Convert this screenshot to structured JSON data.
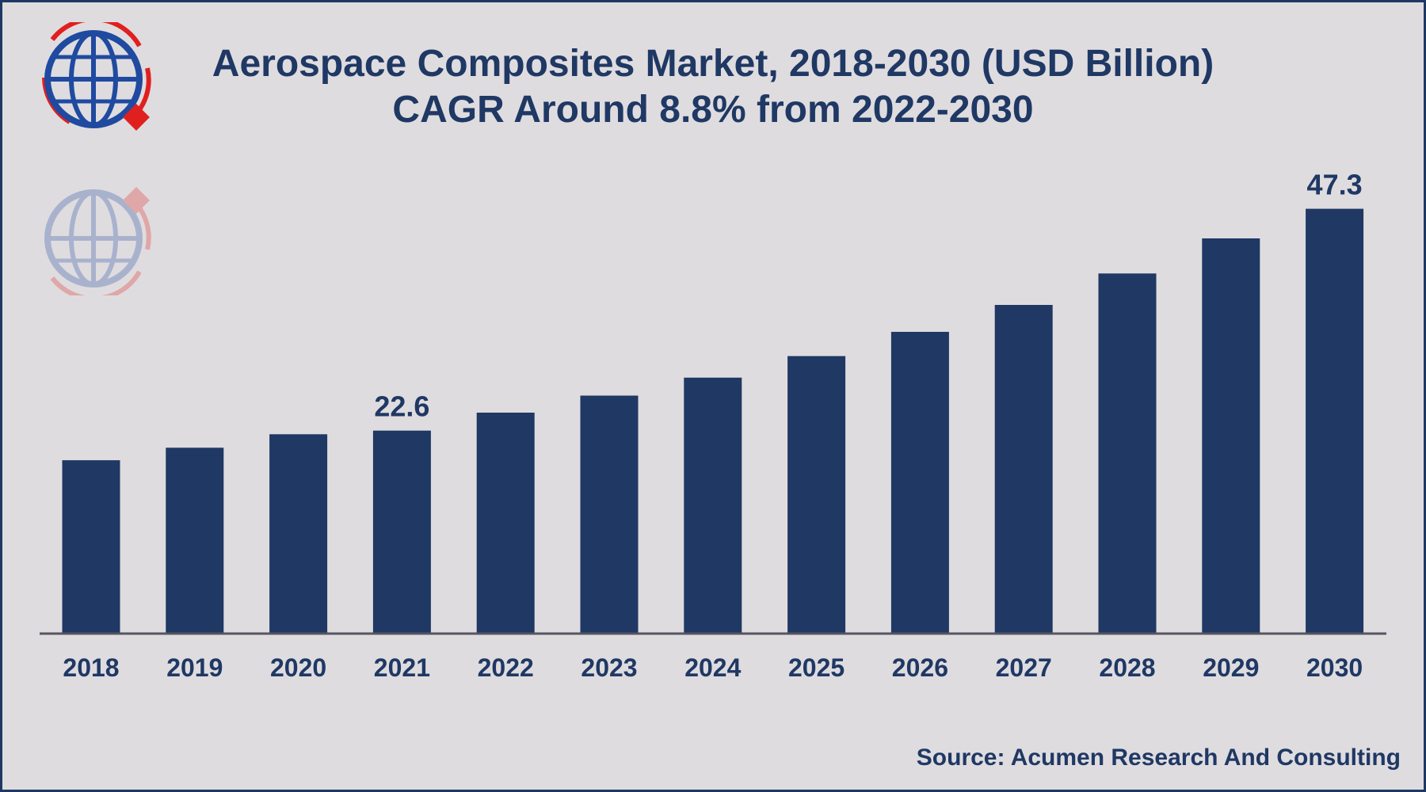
{
  "header": {
    "title_line1": "Aerospace Composites Market, 2018-2030 (USD Billion)",
    "title_line2": "CAGR Around 8.8% from 2022-2030"
  },
  "footer": {
    "source": "Source: Acumen Research And Consulting"
  },
  "logo": {
    "icon": "globe-logo-icon",
    "colors": {
      "globe": "#1f4aa0",
      "accent": "#e0201e"
    }
  },
  "chart_data": {
    "type": "bar",
    "title": "Aerospace Composites Market, 2018-2030 (USD Billion)",
    "subtitle": "CAGR Around 8.8% from 2022-2030",
    "xlabel": "",
    "ylabel": "",
    "categories": [
      "2018",
      "2019",
      "2020",
      "2021",
      "2022",
      "2023",
      "2024",
      "2025",
      "2026",
      "2027",
      "2028",
      "2029",
      "2030"
    ],
    "values": [
      19.3,
      20.7,
      22.2,
      22.6,
      24.6,
      26.5,
      28.5,
      30.9,
      33.6,
      36.6,
      40.1,
      44.0,
      47.3
    ],
    "data_labels": [
      {
        "category": "2021",
        "text": "22.6"
      },
      {
        "category": "2030",
        "text": "47.3"
      }
    ],
    "ylim": [
      0,
      50
    ],
    "grid": false,
    "legend": "none",
    "bar_color": "#1f3864"
  }
}
